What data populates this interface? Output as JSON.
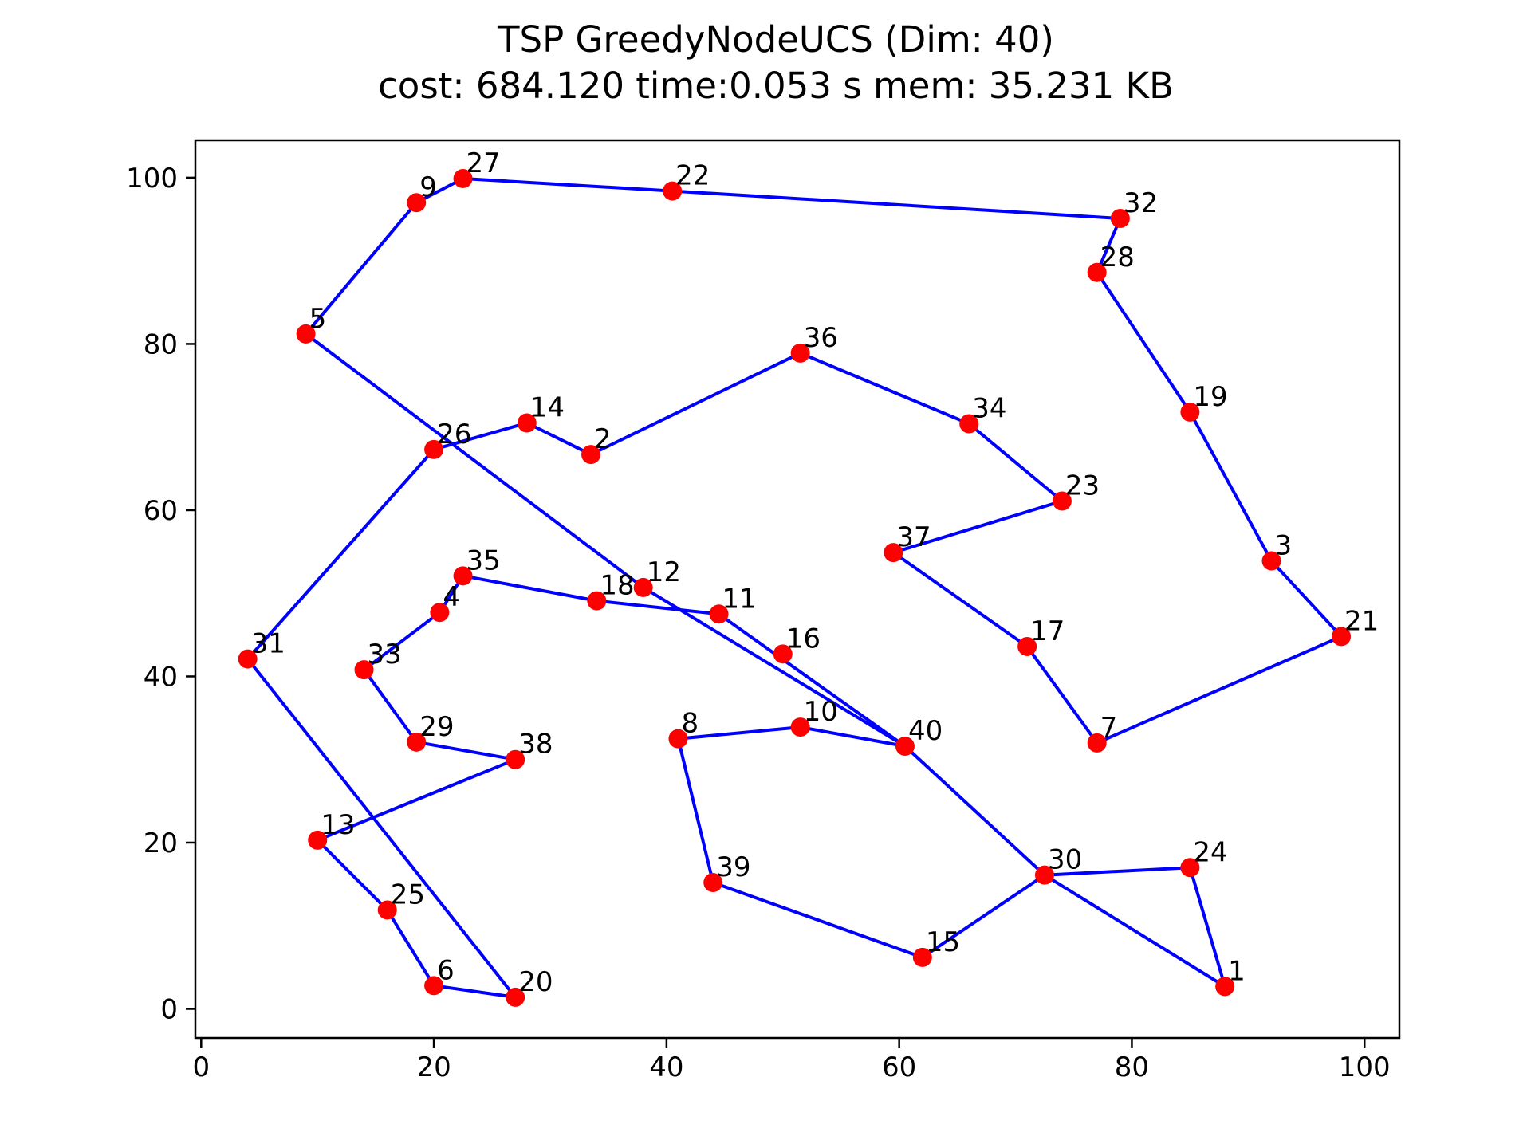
{
  "chart_data": {
    "type": "scatter",
    "title": "TSP GreedyNodeUCS (Dim: 40)",
    "subtitle": "cost: 684.120   time:0.053 s   mem: 35.231 KB",
    "xlabel": "",
    "ylabel": "",
    "xlim": [
      -0.5,
      103.0
    ],
    "ylim": [
      -3.5,
      104.5
    ],
    "xticks": [
      0,
      20,
      40,
      60,
      80,
      100
    ],
    "yticks": [
      0,
      20,
      40,
      60,
      80,
      100
    ],
    "grid": false,
    "colors": {
      "point": "#ff0000",
      "path": "#0000ff",
      "axes": "#000000"
    },
    "points": [
      {
        "label": "1",
        "x": 88.0,
        "y": 2.7
      },
      {
        "label": "2",
        "x": 33.5,
        "y": 66.7
      },
      {
        "label": "3",
        "x": 92.0,
        "y": 53.9
      },
      {
        "label": "4",
        "x": 20.5,
        "y": 47.7
      },
      {
        "label": "5",
        "x": 9.0,
        "y": 81.2
      },
      {
        "label": "6",
        "x": 20.0,
        "y": 2.8
      },
      {
        "label": "7",
        "x": 77.0,
        "y": 32.0
      },
      {
        "label": "8",
        "x": 41.0,
        "y": 32.5
      },
      {
        "label": "9",
        "x": 18.5,
        "y": 97.0
      },
      {
        "label": "10",
        "x": 51.5,
        "y": 33.9
      },
      {
        "label": "11",
        "x": 44.5,
        "y": 47.5
      },
      {
        "label": "12",
        "x": 38.0,
        "y": 50.7
      },
      {
        "label": "13",
        "x": 10.0,
        "y": 20.3
      },
      {
        "label": "14",
        "x": 28.0,
        "y": 70.5
      },
      {
        "label": "15",
        "x": 62.0,
        "y": 6.2
      },
      {
        "label": "16",
        "x": 50.0,
        "y": 42.7
      },
      {
        "label": "17",
        "x": 71.0,
        "y": 43.6
      },
      {
        "label": "18",
        "x": 34.0,
        "y": 49.1
      },
      {
        "label": "19",
        "x": 85.0,
        "y": 71.8
      },
      {
        "label": "20",
        "x": 27.0,
        "y": 1.4
      },
      {
        "label": "21",
        "x": 98.0,
        "y": 44.8
      },
      {
        "label": "22",
        "x": 40.5,
        "y": 98.4
      },
      {
        "label": "23",
        "x": 74.0,
        "y": 61.1
      },
      {
        "label": "24",
        "x": 85.0,
        "y": 17.0
      },
      {
        "label": "25",
        "x": 16.0,
        "y": 11.9
      },
      {
        "label": "26",
        "x": 20.0,
        "y": 67.3
      },
      {
        "label": "27",
        "x": 22.5,
        "y": 99.9
      },
      {
        "label": "28",
        "x": 77.0,
        "y": 88.6
      },
      {
        "label": "29",
        "x": 18.5,
        "y": 32.1
      },
      {
        "label": "30",
        "x": 72.5,
        "y": 16.1
      },
      {
        "label": "31",
        "x": 4.0,
        "y": 42.1
      },
      {
        "label": "32",
        "x": 79.0,
        "y": 95.1
      },
      {
        "label": "33",
        "x": 14.0,
        "y": 40.8
      },
      {
        "label": "34",
        "x": 66.0,
        "y": 70.4
      },
      {
        "label": "35",
        "x": 22.5,
        "y": 52.1
      },
      {
        "label": "36",
        "x": 51.5,
        "y": 78.9
      },
      {
        "label": "37",
        "x": 59.5,
        "y": 54.9
      },
      {
        "label": "38",
        "x": 27.0,
        "y": 30.0
      },
      {
        "label": "39",
        "x": 44.0,
        "y": 15.2
      },
      {
        "label": "40",
        "x": 60.5,
        "y": 31.6
      }
    ],
    "tour": [
      "1",
      "24",
      "30",
      "15",
      "39",
      "8",
      "10",
      "40",
      "11",
      "18",
      "35",
      "4",
      "33",
      "29",
      "38",
      "13",
      "25",
      "6",
      "20",
      "31",
      "26",
      "14",
      "2",
      "36",
      "34",
      "23",
      "37",
      "17",
      "7",
      "21",
      "3",
      "19",
      "28",
      "32",
      "22",
      "27",
      "9",
      "5",
      "12",
      "40",
      "30",
      "1"
    ]
  }
}
